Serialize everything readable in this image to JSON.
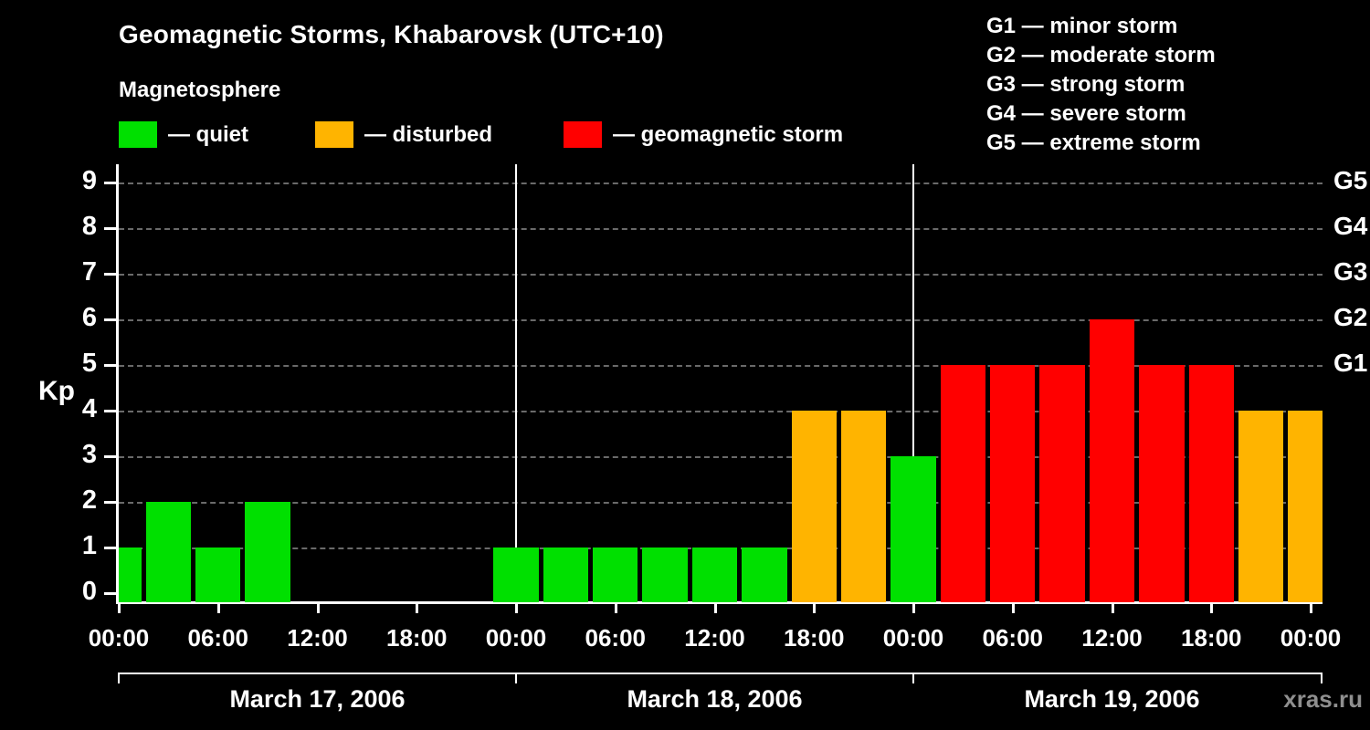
{
  "title": "Geomagnetic Storms, Khabarovsk (UTC+10)",
  "watermark": "xras.ru",
  "colors": {
    "quiet": "#00e000",
    "disturbed": "#ffb400",
    "storm": "#ff0000",
    "background": "#000000",
    "text": "#ffffff",
    "grid": "#6a6a6a",
    "watermark": "#8f8f8f"
  },
  "legend": {
    "heading": "Magnetosphere",
    "items": [
      {
        "color_key": "quiet",
        "label": "— quiet"
      },
      {
        "color_key": "disturbed",
        "label": "— disturbed"
      },
      {
        "color_key": "storm",
        "label": "— geomagnetic storm"
      }
    ]
  },
  "g_scale_legend": [
    "G1 — minor storm",
    "G2 — moderate storm",
    "G3 — strong storm",
    "G4 — severe storm",
    "G5 — extreme storm"
  ],
  "chart_data": {
    "type": "bar",
    "title": "Geomagnetic Storms, Khabarovsk (UTC+10)",
    "xlabel": "",
    "ylabel": "Kp",
    "ylim": [
      0,
      9.4
    ],
    "yticks": [
      0,
      1,
      2,
      3,
      4,
      5,
      6,
      7,
      8,
      9
    ],
    "interval_hours": 3,
    "days": [
      {
        "date": "March 17, 2006",
        "values": [
          1,
          2,
          1,
          2,
          0,
          0,
          0,
          0
        ]
      },
      {
        "date": "March 18, 2006",
        "values": [
          1,
          1,
          1,
          1,
          1,
          1,
          4,
          4
        ]
      },
      {
        "date": "March 19, 2006",
        "values": [
          3,
          5,
          5,
          5,
          6,
          5,
          5,
          4
        ]
      }
    ],
    "trailing_value": 4,
    "x_tick_labels": [
      "00:00",
      "06:00",
      "12:00",
      "18:00"
    ],
    "x_final_tick_label": "00:00",
    "color_rules": {
      "quiet_kp_max": 3,
      "disturbed_kp": 4,
      "storm_kp_min": 5
    },
    "g_axis": [
      {
        "kp": 5,
        "label": "G1"
      },
      {
        "kp": 6,
        "label": "G2"
      },
      {
        "kp": 7,
        "label": "G3"
      },
      {
        "kp": 8,
        "label": "G4"
      },
      {
        "kp": 9,
        "label": "G5"
      }
    ],
    "grid": "dashed-horizontal",
    "legend_position": "top"
  }
}
